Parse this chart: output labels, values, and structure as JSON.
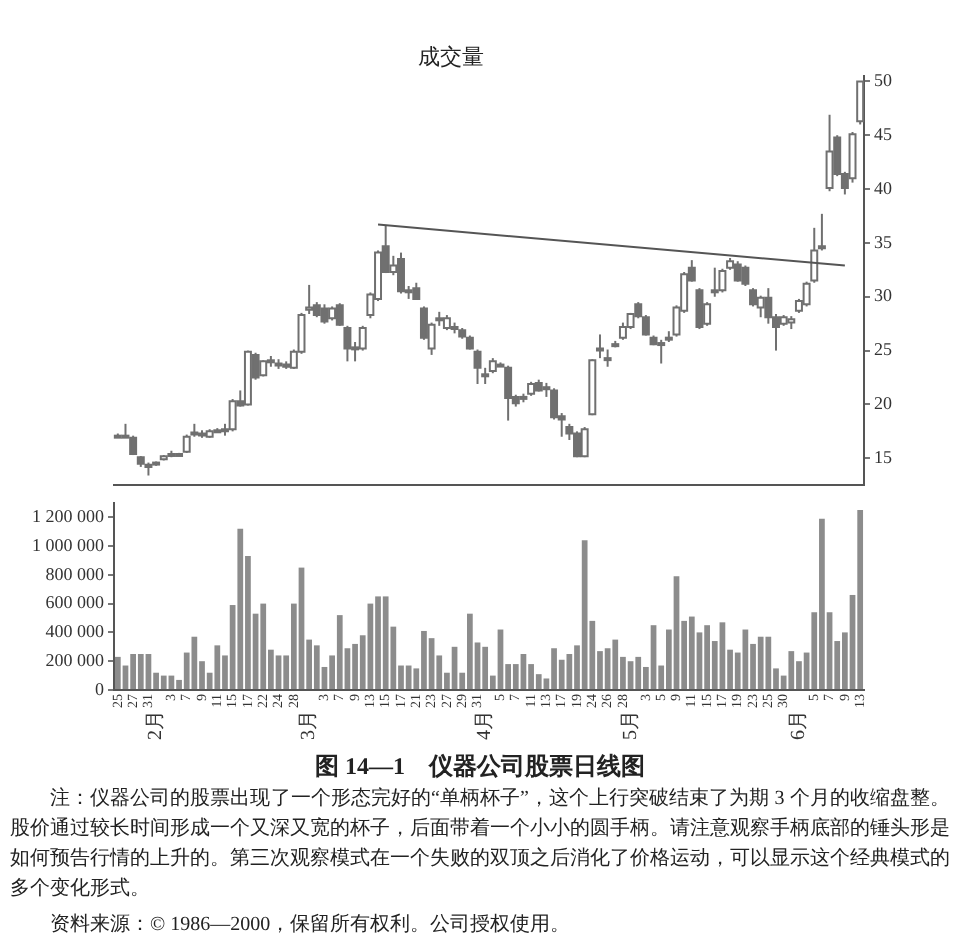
{
  "chart_data": [
    {
      "type": "candlestick",
      "title": "成交量",
      "color": "#707070",
      "ylim": [
        12.5,
        50.5
      ],
      "yticks": [
        15,
        20,
        25,
        30,
        35,
        40,
        45,
        50
      ],
      "categories": [
        null,
        null,
        null,
        null,
        null,
        null,
        null,
        null,
        null,
        null,
        null,
        null,
        null,
        null,
        null,
        null,
        null,
        null,
        null,
        null,
        null,
        null,
        null,
        null,
        null,
        null,
        null,
        null,
        null,
        null,
        null,
        null,
        null,
        null,
        null,
        null,
        null,
        null,
        null,
        null,
        null,
        null,
        null,
        null,
        null,
        null,
        null,
        null,
        null,
        null,
        null,
        null,
        null,
        null,
        null,
        null,
        null,
        null,
        null,
        null,
        null,
        null,
        null,
        null,
        null,
        null,
        null,
        null,
        null,
        null,
        null,
        null,
        null,
        null,
        null,
        null,
        null,
        null,
        null,
        null,
        null,
        null,
        null,
        null,
        null,
        null,
        null,
        null,
        null,
        null,
        null,
        null,
        null,
        null,
        null,
        null,
        null,
        null
      ],
      "ohlc": [
        [
          17.1,
          17.3,
          16.9,
          17.0
        ],
        [
          17.0,
          18.2,
          16.9,
          17.1
        ],
        [
          16.9,
          17.1,
          15.3,
          15.4
        ],
        [
          15.1,
          15.2,
          14.2,
          14.5
        ],
        [
          14.4,
          14.6,
          13.4,
          14.2
        ],
        [
          14.5,
          14.7,
          14.3,
          14.6
        ],
        [
          14.9,
          15.3,
          14.8,
          15.2
        ],
        [
          15.4,
          15.7,
          15.1,
          15.4
        ],
        [
          15.3,
          15.5,
          15.2,
          15.4
        ],
        [
          15.6,
          17.2,
          15.5,
          17.0
        ],
        [
          17.2,
          18.2,
          17.0,
          17.4
        ],
        [
          17.3,
          17.6,
          16.9,
          17.2
        ],
        [
          17.0,
          17.7,
          16.9,
          17.5
        ],
        [
          17.6,
          17.8,
          17.4,
          17.6
        ],
        [
          17.5,
          18.2,
          17.1,
          17.7
        ],
        [
          17.7,
          20.5,
          17.5,
          20.3
        ],
        [
          20.3,
          21.3,
          19.8,
          19.9
        ],
        [
          20.0,
          25.0,
          19.9,
          24.9
        ],
        [
          24.6,
          24.8,
          22.3,
          22.5
        ],
        [
          22.7,
          24.1,
          22.6,
          24.0
        ],
        [
          24.0,
          24.5,
          23.5,
          24.1
        ],
        [
          23.8,
          24.2,
          23.3,
          23.7
        ],
        [
          23.7,
          24.0,
          23.3,
          23.5
        ],
        [
          23.4,
          25.1,
          23.3,
          24.9
        ],
        [
          24.9,
          28.5,
          24.7,
          28.3
        ],
        [
          28.8,
          31.1,
          28.4,
          29.0
        ],
        [
          29.2,
          29.5,
          28.1,
          28.3
        ],
        [
          28.9,
          29.3,
          27.5,
          27.7
        ],
        [
          28.0,
          29.1,
          27.8,
          28.9
        ],
        [
          29.2,
          29.4,
          27.3,
          27.4
        ],
        [
          27.1,
          27.3,
          24.0,
          25.2
        ],
        [
          25.2,
          25.8,
          24.0,
          25.3
        ],
        [
          25.2,
          27.3,
          25.0,
          27.1
        ],
        [
          28.3,
          30.4,
          28.0,
          30.2
        ],
        [
          29.8,
          34.3,
          29.6,
          34.1
        ],
        [
          34.7,
          36.6,
          32.2,
          32.3
        ],
        [
          32.3,
          33.8,
          32.0,
          32.9
        ],
        [
          33.5,
          34.1,
          30.3,
          30.5
        ],
        [
          30.5,
          31.0,
          29.8,
          30.6
        ],
        [
          30.8,
          31.3,
          29.7,
          29.8
        ],
        [
          28.9,
          29.1,
          26.0,
          26.2
        ],
        [
          25.2,
          27.6,
          24.6,
          27.4
        ],
        [
          28.0,
          28.6,
          27.3,
          28.0
        ],
        [
          27.1,
          28.3,
          26.9,
          28.0
        ],
        [
          27.2,
          27.6,
          26.6,
          27.0
        ],
        [
          26.9,
          27.1,
          26.1,
          26.3
        ],
        [
          26.2,
          26.4,
          25.1,
          25.2
        ],
        [
          24.9,
          25.1,
          21.9,
          23.4
        ],
        [
          22.8,
          23.4,
          21.9,
          22.8
        ],
        [
          23.1,
          24.3,
          22.9,
          24.0
        ],
        [
          23.7,
          23.9,
          23.5,
          23.7
        ],
        [
          23.4,
          23.6,
          18.5,
          20.6
        ],
        [
          20.7,
          20.9,
          19.8,
          20.1
        ],
        [
          20.6,
          21.0,
          20.2,
          20.7
        ],
        [
          21.0,
          22.1,
          20.8,
          21.9
        ],
        [
          22.0,
          22.3,
          21.2,
          21.3
        ],
        [
          21.6,
          22.0,
          20.7,
          21.5
        ],
        [
          21.3,
          21.5,
          18.6,
          18.8
        ],
        [
          18.9,
          19.2,
          17.0,
          18.6
        ],
        [
          17.9,
          18.2,
          16.7,
          17.3
        ],
        [
          17.3,
          17.5,
          15.1,
          15.2
        ],
        [
          15.2,
          17.9,
          15.1,
          17.7
        ],
        [
          19.1,
          24.2,
          19.0,
          24.1
        ],
        [
          25.0,
          26.5,
          24.3,
          25.2
        ],
        [
          24.2,
          25.1,
          23.5,
          24.3
        ],
        [
          25.6,
          25.9,
          25.3,
          25.6
        ],
        [
          26.2,
          27.6,
          26.0,
          27.2
        ],
        [
          27.2,
          28.5,
          27.0,
          28.4
        ],
        [
          29.3,
          29.5,
          28.0,
          28.2
        ],
        [
          28.1,
          28.3,
          26.4,
          26.5
        ],
        [
          26.2,
          26.4,
          25.5,
          25.6
        ],
        [
          25.6,
          26.0,
          23.8,
          25.7
        ],
        [
          26.1,
          26.8,
          25.8,
          26.2
        ],
        [
          26.5,
          29.2,
          26.3,
          29.0
        ],
        [
          28.7,
          32.3,
          28.5,
          32.1
        ],
        [
          32.7,
          33.4,
          31.4,
          31.5
        ],
        [
          30.6,
          30.8,
          27.0,
          27.2
        ],
        [
          27.5,
          29.5,
          27.3,
          29.3
        ],
        [
          30.5,
          32.7,
          30.0,
          30.6
        ],
        [
          30.6,
          32.6,
          30.4,
          32.4
        ],
        [
          32.7,
          33.6,
          32.5,
          33.3
        ],
        [
          33.0,
          33.3,
          31.4,
          31.5
        ],
        [
          32.7,
          32.9,
          31.0,
          31.2
        ],
        [
          30.6,
          30.8,
          29.1,
          29.3
        ],
        [
          29.0,
          30.1,
          28.1,
          29.9
        ],
        [
          29.9,
          30.8,
          27.5,
          28.1
        ],
        [
          28.1,
          28.4,
          25.0,
          27.2
        ],
        [
          27.5,
          28.3,
          27.3,
          28.1
        ],
        [
          27.6,
          28.2,
          27.0,
          27.9
        ],
        [
          28.7,
          29.8,
          28.5,
          29.6
        ],
        [
          29.3,
          31.4,
          29.1,
          31.2
        ],
        [
          31.5,
          36.4,
          31.3,
          34.3
        ],
        [
          34.5,
          37.7,
          34.3,
          34.7
        ],
        [
          40.1,
          46.9,
          39.8,
          43.5
        ],
        [
          44.8,
          45.0,
          41.2,
          41.4
        ],
        [
          41.4,
          41.6,
          39.5,
          40.1
        ],
        [
          41.0,
          45.3,
          40.6,
          45.1
        ],
        [
          46.3,
          50.0,
          46.0,
          50.0
        ]
      ],
      "colors": [
        "#707070",
        "#ffffff",
        "#707070",
        "#707070",
        "#707070",
        "#ffffff",
        "#ffffff",
        "#ffffff",
        "#ffffff",
        "#ffffff",
        "#ffffff",
        "#707070",
        "#ffffff",
        "#ffffff",
        "#ffffff",
        "#ffffff",
        "#707070",
        "#ffffff",
        "#707070",
        "#ffffff",
        "#ffffff",
        "#707070",
        "#707070",
        "#ffffff",
        "#ffffff",
        "#ffffff",
        "#707070",
        "#707070",
        "#ffffff",
        "#707070",
        "#707070",
        "#ffffff",
        "#ffffff",
        "#ffffff",
        "#ffffff",
        "#707070",
        "#ffffff",
        "#707070",
        "#ffffff",
        "#707070",
        "#707070",
        "#ffffff",
        "#ffffff",
        "#ffffff",
        "#707070",
        "#707070",
        "#707070",
        "#707070",
        "#ffffff",
        "#ffffff",
        "#ffffff",
        "#707070",
        "#707070",
        "#ffffff",
        "#ffffff",
        "#707070",
        "#707070",
        "#707070",
        "#707070",
        "#707070",
        "#707070",
        "#ffffff",
        "#ffffff",
        "#ffffff",
        "#ffffff",
        "#ffffff",
        "#ffffff",
        "#ffffff",
        "#707070",
        "#707070",
        "#707070",
        "#ffffff",
        "#ffffff",
        "#ffffff",
        "#ffffff",
        "#707070",
        "#707070",
        "#ffffff",
        "#ffffff",
        "#ffffff",
        "#ffffff",
        "#707070",
        "#707070",
        "#707070",
        "#ffffff",
        "#707070",
        "#707070",
        "#ffffff",
        "#ffffff",
        "#ffffff",
        "#ffffff",
        "#ffffff",
        "#ffffff",
        "#ffffff",
        "#707070",
        "#707070",
        "#ffffff",
        "#ffffff"
      ],
      "series": [
        {
          "type": "line",
          "color": "#555555",
          "marker": "none",
          "values": [
            null,
            null,
            null,
            null,
            null,
            null,
            null,
            null,
            null,
            null,
            null,
            null,
            null,
            null,
            null,
            null,
            null,
            null,
            null,
            null,
            null,
            null,
            null,
            null,
            null,
            null,
            null,
            null,
            null,
            null,
            null,
            null,
            null,
            null,
            36.7,
            null,
            null,
            null,
            null,
            null,
            null,
            null,
            null,
            null,
            null,
            null,
            null,
            null,
            null,
            null,
            null,
            null,
            null,
            null,
            null,
            null,
            null,
            null,
            null,
            null,
            null,
            null,
            null,
            null,
            null,
            null,
            null,
            null,
            null,
            null,
            null,
            null,
            null,
            null,
            null,
            null,
            null,
            null,
            null,
            null,
            null,
            null,
            null,
            null,
            null,
            null,
            null,
            null,
            null,
            null,
            null,
            null,
            null,
            null,
            null,
            32.9,
            null,
            null
          ]
        }
      ]
    },
    {
      "type": "bar",
      "color": "#8c8c8c",
      "ylim": [
        0,
        1300000
      ],
      "yticks": [
        0,
        {
          "value": 200000,
          "label": "200 000"
        },
        {
          "value": 400000,
          "label": "400 000"
        },
        {
          "value": 600000,
          "label": "600 000"
        },
        {
          "value": 800000,
          "label": "800 000"
        },
        {
          "value": 1000000,
          "label": "1 000 000"
        },
        {
          "value": 1200000,
          "label": "1 200 000"
        }
      ],
      "categories": [
        "25",
        null,
        "27",
        null,
        "31",
        "2月",
        null,
        "3",
        null,
        "7",
        null,
        "9",
        null,
        "11",
        null,
        "15",
        null,
        "17",
        null,
        "22",
        null,
        "24",
        null,
        "28",
        null,
        "3月",
        null,
        "3",
        null,
        "7",
        null,
        "9",
        null,
        "13",
        null,
        "15",
        null,
        "17",
        null,
        "21",
        null,
        "23",
        null,
        "27",
        null,
        "29",
        null,
        "31",
        "4月",
        null,
        "5",
        null,
        "7",
        null,
        "11",
        null,
        "13",
        null,
        "17",
        null,
        "19",
        null,
        "24",
        null,
        "26",
        null,
        "28",
        "5月",
        null,
        "3",
        null,
        "5",
        null,
        "9",
        null,
        "11",
        null,
        "15",
        null,
        "17",
        null,
        "19",
        null,
        "23",
        null,
        "25",
        null,
        "30",
        null,
        "6月",
        null,
        "5",
        null,
        "7",
        null,
        "9",
        null,
        "13"
      ],
      "values": [
        230000,
        170000,
        250000,
        250000,
        250000,
        120000,
        100000,
        100000,
        70000,
        260000,
        370000,
        200000,
        120000,
        310000,
        240000,
        590000,
        1120000,
        930000,
        530000,
        600000,
        280000,
        240000,
        240000,
        600000,
        850000,
        350000,
        310000,
        160000,
        240000,
        520000,
        290000,
        320000,
        380000,
        600000,
        650000,
        650000,
        440000,
        170000,
        170000,
        150000,
        410000,
        360000,
        240000,
        120000,
        300000,
        120000,
        530000,
        330000,
        300000,
        100000,
        420000,
        180000,
        180000,
        250000,
        180000,
        110000,
        80000,
        290000,
        210000,
        250000,
        310000,
        1040000,
        480000,
        270000,
        290000,
        350000,
        230000,
        200000,
        230000,
        160000,
        450000,
        170000,
        420000,
        790000,
        480000,
        510000,
        400000,
        450000,
        340000,
        470000,
        280000,
        260000,
        420000,
        320000,
        370000,
        370000,
        150000,
        100000,
        270000,
        200000,
        260000,
        540000,
        1190000,
        540000,
        340000,
        400000,
        660000,
        1250000
      ],
      "annotations": [
        "图 14—1　仪器公司股票日线图",
        "注：仪器公司的股票出现了一个形态完好的“单柄杯子”，这个上行突破结束了为期 3 个月的收缩盘整。股价通过较长时间形成一个又深又宽的杯子，后面带着一个小小的圆手柄。请注意观察手柄底部的锤头形是如何预告行情的上升的。第三次观察模式在一个失败的双顶之后消化了价格运动，可以显示这个经典模式的多个变化形式。",
        "资料来源：© 1986—2000，保留所有权利。公司授权使用。"
      ]
    }
  ]
}
